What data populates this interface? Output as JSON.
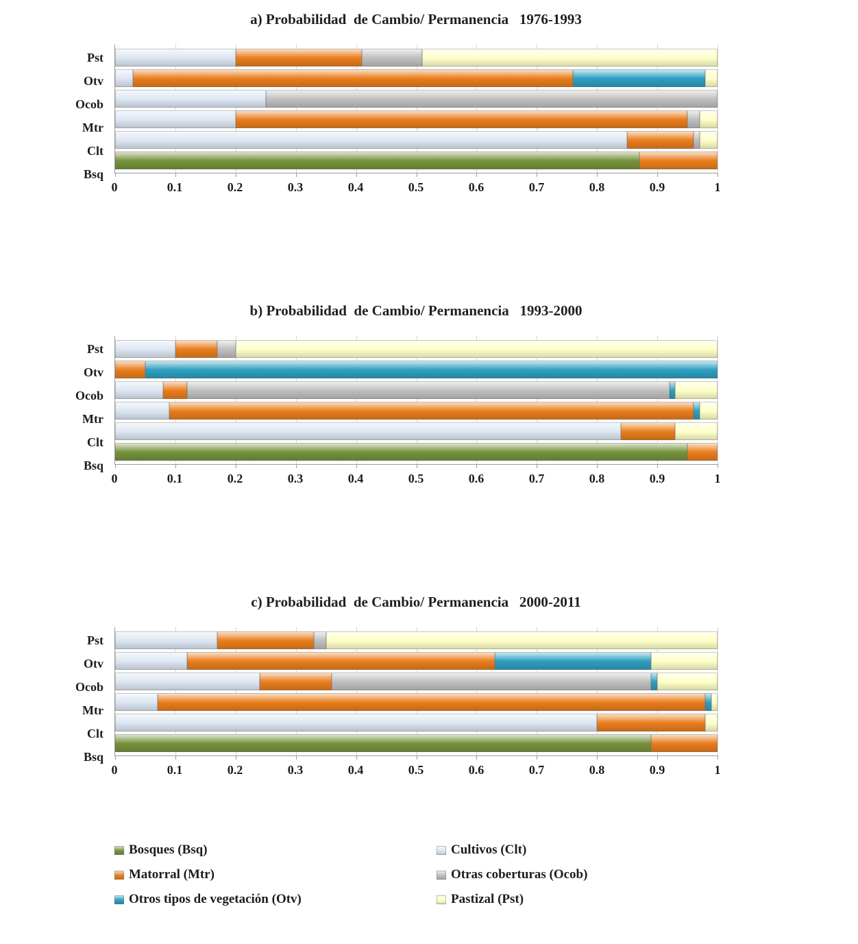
{
  "page": {
    "background": "#FFFFFF",
    "text_color": "#1C1C1C"
  },
  "series_colors": {
    "Bsq": "#76923C",
    "Clt": "#DCE6F2",
    "Mtr": "#E97D1C",
    "Ocob": "#BFBFBF",
    "Otv": "#2D9FC0",
    "Pst": "#FFFFC8"
  },
  "chart_data": [
    {
      "type": "bar",
      "stacked": true,
      "orientation": "horizontal",
      "title": "a) Probabilidad  de Cambio/ Permanencia   1976-1993",
      "categories": [
        "Pst",
        "Otv",
        "Ocob",
        "Mtr",
        "Clt",
        "Bsq"
      ],
      "xlim": [
        0,
        1
      ],
      "x_ticks": [
        "0",
        "0.1",
        "0.2",
        "0.3",
        "0.4",
        "0.5",
        "0.6",
        "0.7",
        "0.8",
        "0.9",
        "1"
      ],
      "grid": true,
      "legend_position": "none",
      "series": [
        {
          "name": "Bosques (Bsq)",
          "color": "#76923C",
          "values": [
            0,
            0,
            0,
            0,
            0,
            0.87
          ]
        },
        {
          "name": "Cultivos (Clt)",
          "color": "#DCE6F2",
          "values": [
            0.2,
            0.03,
            0.25,
            0.2,
            0.85,
            0
          ]
        },
        {
          "name": "Matorral (Mtr)",
          "color": "#E97D1C",
          "values": [
            0.21,
            0.73,
            0,
            0.75,
            0.11,
            0.13
          ]
        },
        {
          "name": "Otras coberturas (Ocob)",
          "color": "#BFBFBF",
          "values": [
            0.1,
            0,
            0.75,
            0.02,
            0.01,
            0
          ]
        },
        {
          "name": "Otros tipos de vegetación (Otv)",
          "color": "#2D9FC0",
          "values": [
            0,
            0.22,
            0,
            0,
            0,
            0
          ]
        },
        {
          "name": "Pastizal (Pst)",
          "color": "#FFFFC8",
          "values": [
            0.49,
            0.02,
            0,
            0.03,
            0.03,
            0
          ]
        }
      ]
    },
    {
      "type": "bar",
      "stacked": true,
      "orientation": "horizontal",
      "title": "b) Probabilidad  de Cambio/ Permanencia   1993-2000",
      "categories": [
        "Pst",
        "Otv",
        "Ocob",
        "Mtr",
        "Clt",
        "Bsq"
      ],
      "xlim": [
        0,
        1
      ],
      "x_ticks": [
        "0",
        "0.1",
        "0.2",
        "0.3",
        "0.4",
        "0.5",
        "0.6",
        "0.7",
        "0.8",
        "0.9",
        "1"
      ],
      "grid": true,
      "legend_position": "none",
      "series": [
        {
          "name": "Bosques (Bsq)",
          "color": "#76923C",
          "values": [
            0,
            0,
            0,
            0,
            0,
            0.95
          ]
        },
        {
          "name": "Cultivos (Clt)",
          "color": "#DCE6F2",
          "values": [
            0.1,
            0,
            0.08,
            0.09,
            0.84,
            0
          ]
        },
        {
          "name": "Matorral (Mtr)",
          "color": "#E97D1C",
          "values": [
            0.07,
            0.05,
            0.04,
            0.87,
            0.09,
            0.05
          ]
        },
        {
          "name": "Otras coberturas (Ocob)",
          "color": "#BFBFBF",
          "values": [
            0.03,
            0,
            0.8,
            0,
            0,
            0
          ]
        },
        {
          "name": "Otros tipos de vegetación (Otv)",
          "color": "#2D9FC0",
          "values": [
            0,
            0.95,
            0.01,
            0.01,
            0,
            0
          ]
        },
        {
          "name": "Pastizal (Pst)",
          "color": "#FFFFC8",
          "values": [
            0.8,
            0,
            0.07,
            0.03,
            0.07,
            0
          ]
        }
      ]
    },
    {
      "type": "bar",
      "stacked": true,
      "orientation": "horizontal",
      "title": "c) Probabilidad  de Cambio/ Permanencia   2000-2011",
      "categories": [
        "Pst",
        "Otv",
        "Ocob",
        "Mtr",
        "Clt",
        "Bsq"
      ],
      "xlim": [
        0,
        1
      ],
      "x_ticks": [
        "0",
        "0.1",
        "0.2",
        "0.3",
        "0.4",
        "0.5",
        "0.6",
        "0.7",
        "0.8",
        "0.9",
        "1"
      ],
      "grid": true,
      "legend_position": "none",
      "series": [
        {
          "name": "Bosques (Bsq)",
          "color": "#76923C",
          "values": [
            0,
            0,
            0,
            0,
            0,
            0.89
          ]
        },
        {
          "name": "Cultivos (Clt)",
          "color": "#DCE6F2",
          "values": [
            0.17,
            0.12,
            0.24,
            0.07,
            0.8,
            0
          ]
        },
        {
          "name": "Matorral (Mtr)",
          "color": "#E97D1C",
          "values": [
            0.16,
            0.51,
            0.12,
            0.91,
            0.18,
            0.11
          ]
        },
        {
          "name": "Otras coberturas (Ocob)",
          "color": "#BFBFBF",
          "values": [
            0.02,
            0,
            0.53,
            0,
            0,
            0
          ]
        },
        {
          "name": "Otros tipos de vegetación (Otv)",
          "color": "#2D9FC0",
          "values": [
            0,
            0.26,
            0.01,
            0.01,
            0,
            0
          ]
        },
        {
          "name": "Pastizal (Pst)",
          "color": "#FFFFC8",
          "values": [
            0.65,
            0.11,
            0.1,
            0.01,
            0.02,
            0
          ]
        }
      ]
    }
  ],
  "legend": {
    "columns": [
      [
        {
          "label": "Bosques (Bsq)",
          "color": "#76923C"
        },
        {
          "label": "Matorral (Mtr)",
          "color": "#E97D1C"
        },
        {
          "label": "Otros tipos de vegetación (Otv)",
          "color": "#2D9FC0"
        }
      ],
      [
        {
          "label": "Cultivos (Clt)",
          "color": "#DCE6F2"
        },
        {
          "label": "Otras coberturas (Ocob)",
          "color": "#BFBFBF"
        },
        {
          "label": "Pastizal (Pst)",
          "color": "#FFFFC8"
        }
      ]
    ]
  }
}
